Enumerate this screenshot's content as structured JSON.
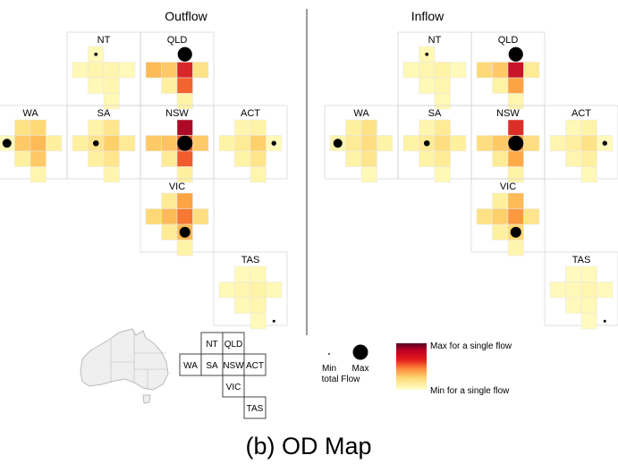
{
  "panels": [
    {
      "key": "outflow",
      "title": "Outflow",
      "states": {
        "NT": {
          "label": "NT",
          "marker": 0.05,
          "cells": [
            0,
            0.05,
            0,
            0,
            0.06,
            0.08,
            0.08,
            0.05,
            0,
            0.06,
            0.08,
            0,
            0,
            0,
            0.06,
            0
          ]
        },
        "QLD": {
          "label": "QLD",
          "marker": 0.9,
          "cells": [
            0,
            0,
            0,
            0,
            0.35,
            0.3,
            0.78,
            0.2,
            0,
            0.12,
            0.6,
            0,
            0,
            0,
            0.1,
            0
          ]
        },
        "WA": {
          "label": "WA",
          "marker": 0.35,
          "cells": [
            0,
            0.2,
            0.25,
            0,
            0.05,
            0.3,
            0.35,
            0.12,
            0,
            0.12,
            0.3,
            0,
            0,
            0,
            0.08,
            0
          ]
        },
        "SA": {
          "label": "SA",
          "marker": 0.15,
          "cells": [
            0,
            0.1,
            0.18,
            0,
            0.12,
            0.18,
            0.28,
            0.15,
            0,
            0.12,
            0.18,
            0,
            0,
            0,
            0.08,
            0
          ]
        },
        "NSW": {
          "label": "NSW",
          "marker": 1.0,
          "cells": [
            0,
            0,
            0.92,
            0,
            0.3,
            0.32,
            0.62,
            0.3,
            0,
            0.15,
            0.62,
            0,
            0,
            0,
            0.12,
            0
          ]
        },
        "ACT": {
          "label": "ACT",
          "marker": 0.1,
          "cells": [
            0,
            0.08,
            0.1,
            0,
            0.1,
            0.15,
            0.28,
            0.05,
            0,
            0.1,
            0.18,
            0,
            0,
            0,
            0.08,
            0
          ]
        },
        "VIC": {
          "label": "VIC",
          "marker": 0.5,
          "cells": [
            0,
            0.15,
            0.42,
            0,
            0.25,
            0.35,
            0.55,
            0.22,
            0,
            0.15,
            0.35,
            0,
            0,
            0,
            0.1,
            0
          ]
        },
        "TAS": {
          "label": "TAS",
          "marker": 0.03,
          "cells": [
            0,
            0.05,
            0.06,
            0,
            0.06,
            0.08,
            0.1,
            0.06,
            0,
            0.06,
            0.08,
            0,
            0,
            0,
            0.05,
            0
          ]
        }
      }
    },
    {
      "key": "inflow",
      "title": "Inflow",
      "states": {
        "NT": {
          "label": "NT",
          "marker": 0.05,
          "cells": [
            0,
            0.06,
            0,
            0,
            0.06,
            0.08,
            0.1,
            0.05,
            0,
            0.06,
            0.08,
            0,
            0,
            0,
            0.06,
            0
          ]
        },
        "QLD": {
          "label": "QLD",
          "marker": 0.9,
          "cells": [
            0,
            0,
            0,
            0,
            0.25,
            0.3,
            0.85,
            0.15,
            0,
            0.1,
            0.42,
            0,
            0,
            0,
            0.08,
            0
          ]
        },
        "WA": {
          "label": "WA",
          "marker": 0.35,
          "cells": [
            0,
            0.12,
            0.2,
            0,
            0.08,
            0.15,
            0.22,
            0.1,
            0,
            0.1,
            0.18,
            0,
            0,
            0,
            0.06,
            0
          ]
        },
        "SA": {
          "label": "SA",
          "marker": 0.15,
          "cells": [
            0,
            0.08,
            0.15,
            0,
            0.1,
            0.15,
            0.22,
            0.12,
            0,
            0.1,
            0.15,
            0,
            0,
            0,
            0.06,
            0
          ]
        },
        "NSW": {
          "label": "NSW",
          "marker": 1.0,
          "cells": [
            0,
            0,
            0.75,
            0,
            0.22,
            0.3,
            0.42,
            0.22,
            0,
            0.15,
            0.4,
            0,
            0,
            0,
            0.1,
            0
          ]
        },
        "ACT": {
          "label": "ACT",
          "marker": 0.1,
          "cells": [
            0,
            0.06,
            0.1,
            0,
            0.08,
            0.12,
            0.2,
            0.05,
            0,
            0.08,
            0.12,
            0,
            0,
            0,
            0.06,
            0
          ]
        },
        "VIC": {
          "label": "VIC",
          "marker": 0.5,
          "cells": [
            0,
            0.12,
            0.35,
            0,
            0.2,
            0.28,
            0.45,
            0.18,
            0,
            0.12,
            0.25,
            0,
            0,
            0,
            0.08,
            0
          ]
        },
        "TAS": {
          "label": "TAS",
          "marker": 0.03,
          "cells": [
            0,
            0.04,
            0.05,
            0,
            0.05,
            0.06,
            0.08,
            0.05,
            0,
            0.05,
            0.06,
            0,
            0,
            0,
            0.04,
            0
          ]
        }
      }
    }
  ],
  "layout_legend": {
    "states": [
      "NT",
      "QLD",
      "WA",
      "SA",
      "NSW",
      "ACT",
      "VIC",
      "TAS"
    ]
  },
  "size_legend": {
    "min_label": "Min",
    "max_label": "Max",
    "caption": "total Flow"
  },
  "color_legend": {
    "max_label": "Max for a single flow",
    "min_label": "Min for a single flow",
    "colors": [
      "#ffffcc",
      "#fed976",
      "#feb24c",
      "#fd8d3c",
      "#fc4e2a",
      "#e31a1c",
      "#bd0026",
      "#800026",
      "#500020"
    ]
  },
  "caption": "(b) OD Map",
  "colors": {
    "divider": "#333333",
    "cell_border": "#e8e8e8",
    "group_border": "#cccccc",
    "map_fill": "#efefef",
    "map_stroke": "#bbbbbb"
  }
}
